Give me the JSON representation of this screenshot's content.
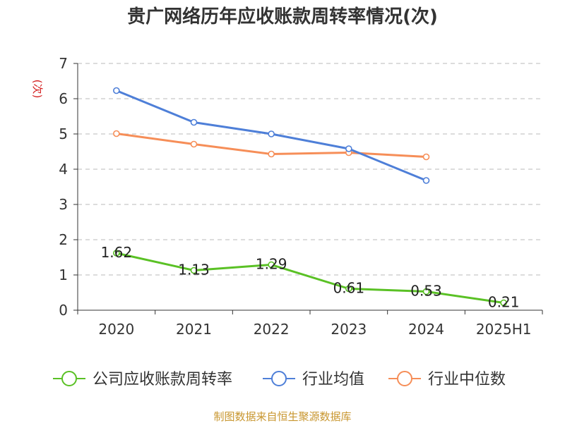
{
  "chart_data": {
    "type": "line",
    "title": "贵广网络历年应收账款周转率情况(次)",
    "ylabel": "(次)",
    "xlabel": "",
    "categories": [
      "2020",
      "2021",
      "2022",
      "2023",
      "2024",
      "2025H1"
    ],
    "ylim": [
      0,
      7
    ],
    "yticks": [
      "0",
      "1",
      "2",
      "3",
      "4",
      "5",
      "6",
      "7"
    ],
    "grid": true,
    "legend_position": "bottom",
    "series": [
      {
        "name": "公司应收账款周转率",
        "color": "#5ac125",
        "values": [
          1.62,
          1.13,
          1.29,
          0.61,
          0.53,
          0.21
        ],
        "labels": [
          "1.62",
          "1.13",
          "1.29",
          "0.61",
          "0.53",
          "0.21"
        ]
      },
      {
        "name": "行业均值",
        "color": "#4e7fd8",
        "values": [
          6.23,
          5.33,
          5.0,
          4.58,
          3.68,
          null
        ]
      },
      {
        "name": "行业中位数",
        "color": "#f68e58",
        "values": [
          5.01,
          4.71,
          4.43,
          4.47,
          4.35,
          null
        ]
      }
    ]
  },
  "source": "制图数据来自恒生聚源数据库"
}
